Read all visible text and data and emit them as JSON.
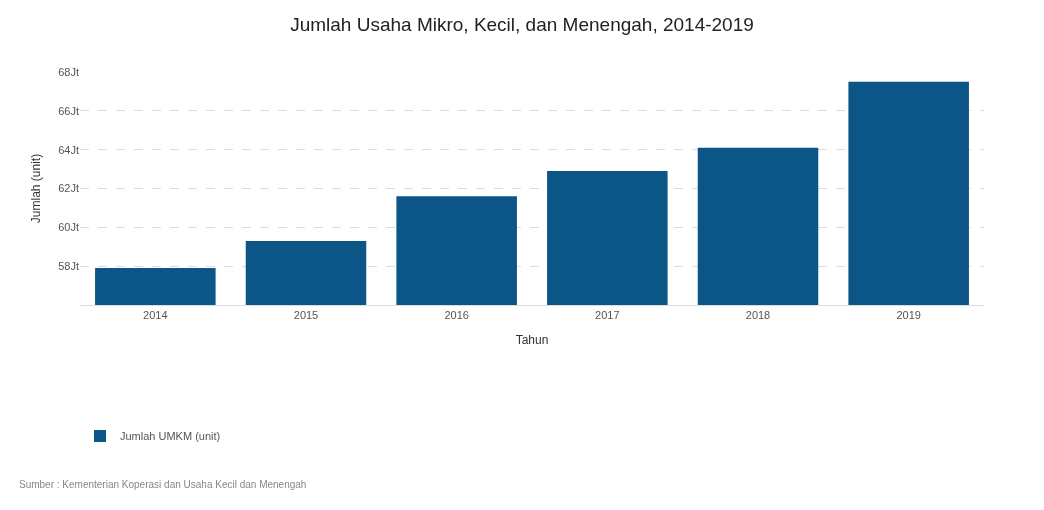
{
  "chart_data": {
    "type": "bar",
    "title": "Jumlah Usaha Mikro, Kecil, dan Menengah, 2014-2019",
    "xlabel": "Tahun",
    "ylabel": "Jumlah (unit)",
    "categories": [
      "2014",
      "2015",
      "2016",
      "2017",
      "2018",
      "2019"
    ],
    "series": [
      {
        "name": "Jumlah UMKM (unit)",
        "color": "#0b5686",
        "values": [
          57.9,
          59.3,
          61.6,
          62.9,
          64.1,
          67.5
        ]
      }
    ],
    "ylim": [
      56,
      68
    ],
    "yticks": [
      {
        "value": 58,
        "label": "58Jt"
      },
      {
        "value": 60,
        "label": "60Jt"
      },
      {
        "value": 62,
        "label": "62Jt"
      },
      {
        "value": 64,
        "label": "64Jt"
      },
      {
        "value": 66,
        "label": "66Jt"
      },
      {
        "value": 68,
        "label": "68Jt"
      }
    ],
    "grid": "y",
    "legend": "bottom left",
    "annotations": [
      "Sumber : Kementerian Koperasi dan Usaha Kecil dan Menengah"
    ]
  }
}
